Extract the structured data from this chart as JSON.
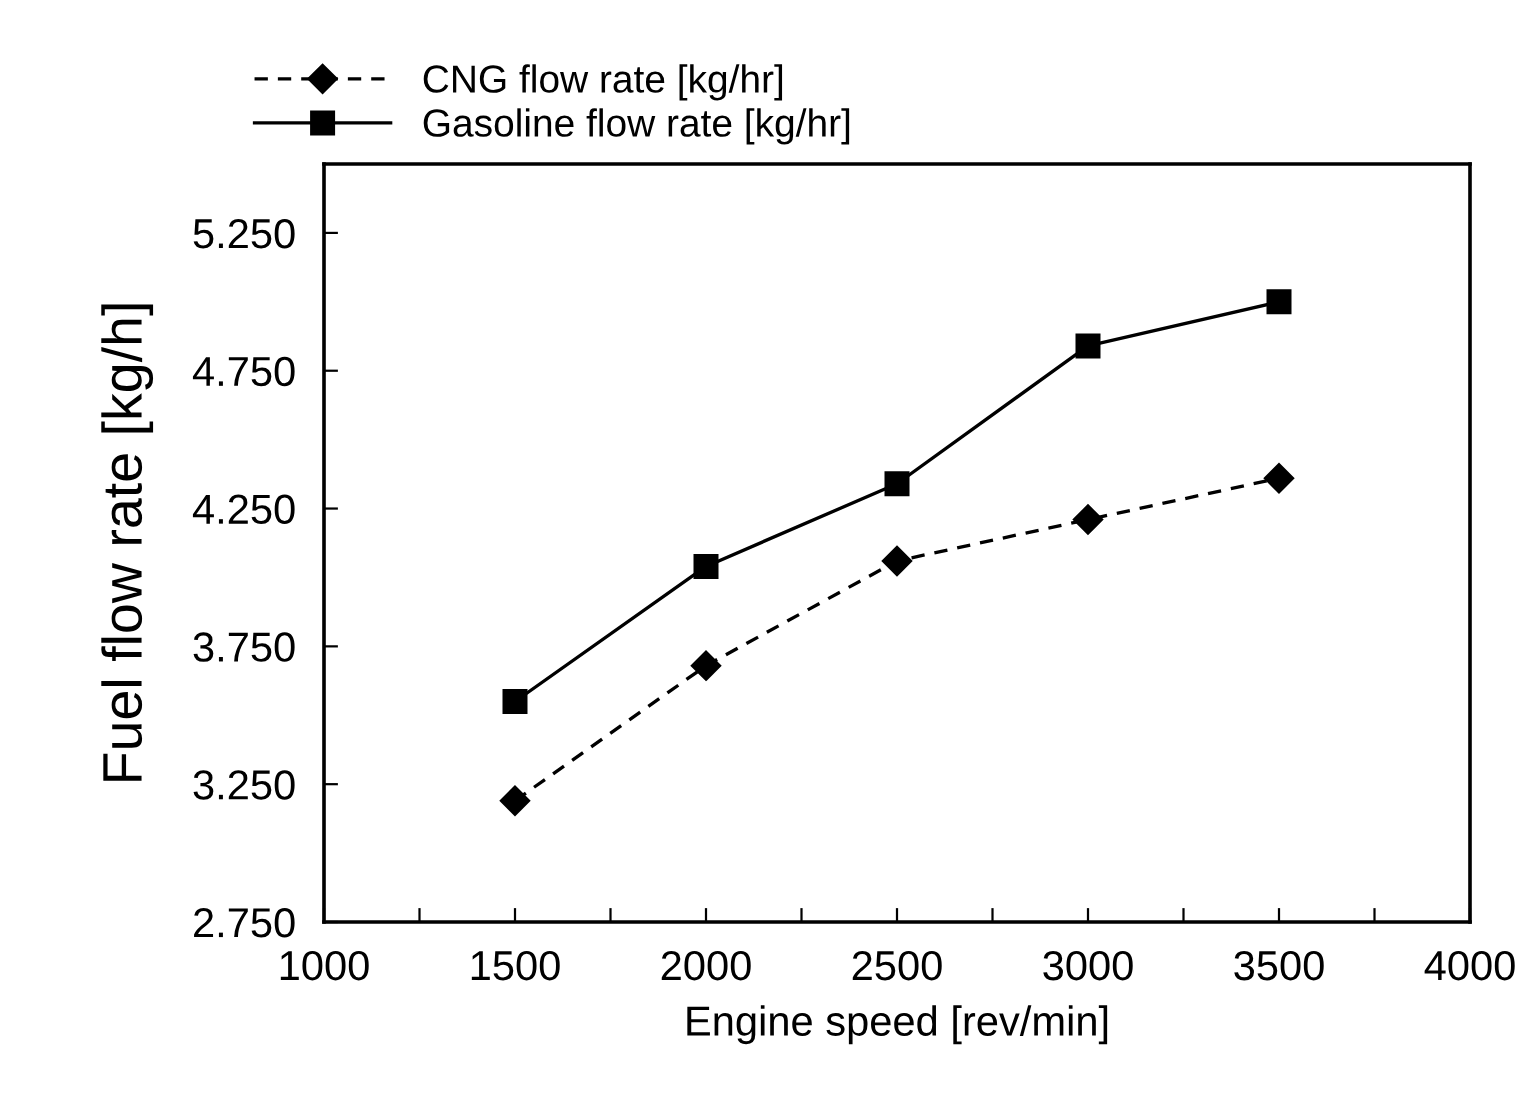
{
  "chart_data": {
    "type": "line",
    "xlabel": "Engine speed [rev/min]",
    "ylabel": "Fuel flow rate [kg/h]",
    "x": [
      1500,
      2000,
      2500,
      3000,
      3500
    ],
    "series": [
      {
        "name": "CNG flow rate [kg/hr]",
        "color": "#000000",
        "values": [
          3.19,
          3.68,
          4.06,
          4.21,
          4.36
        ],
        "marker": "diamond",
        "line_style": "dashed"
      },
      {
        "name": "Gasoline flow rate [kg/hr]",
        "color": "#000000",
        "values": [
          3.55,
          4.04,
          4.34,
          4.84,
          5.0
        ],
        "marker": "square",
        "line_style": "solid"
      }
    ],
    "xlim": [
      1000,
      4000
    ],
    "xticks": [
      1000,
      {
        "value": 1250,
        "label": null
      },
      1500,
      {
        "value": 1750,
        "label": null
      },
      2000,
      {
        "value": 2250,
        "label": null
      },
      2500,
      {
        "value": 2750,
        "label": null
      },
      3000,
      {
        "value": 3250,
        "label": null
      },
      3500,
      {
        "value": 3750,
        "label": null
      },
      4000
    ],
    "ylim": [
      2.75,
      5.5
    ],
    "yticks": [
      {
        "value": 2.75,
        "label": "2.750"
      },
      {
        "value": 3.25,
        "label": "3.250"
      },
      {
        "value": 3.75,
        "label": "3.750"
      },
      {
        "value": 4.25,
        "label": "4.250"
      },
      {
        "value": 4.75,
        "label": "4.750"
      },
      {
        "value": 5.25,
        "label": "5.250"
      }
    ],
    "grid": false,
    "legend": "top"
  }
}
